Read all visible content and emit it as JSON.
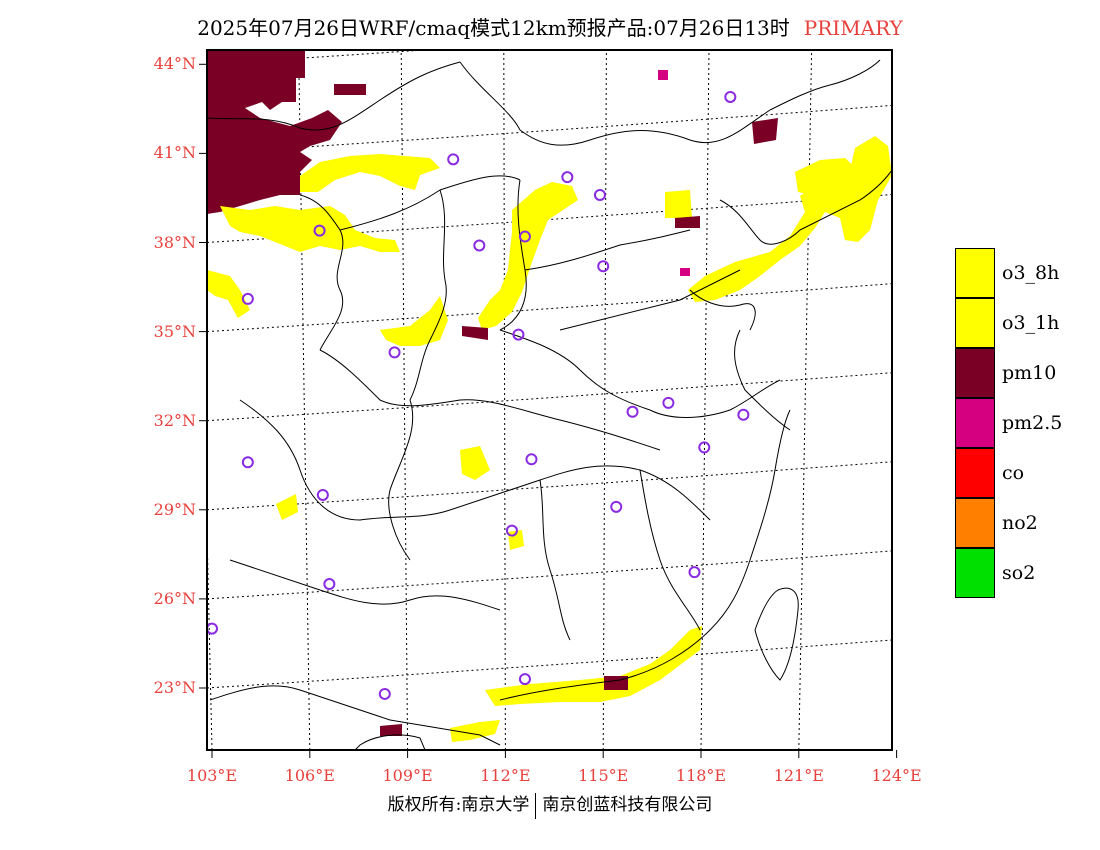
{
  "title": {
    "main": "2025年07月26日WRF/cmaq模式12km预报产品:07月26日13时",
    "tag": "PRIMARY"
  },
  "colors": {
    "label_red": "#e8403c",
    "o3_8h": "#ffff00",
    "o3_1h": "#ffff00",
    "pm10": "#7a0026",
    "pm2_5": "#d4007f",
    "co": "#ff0000",
    "no2": "#ff8000",
    "so2": "#00e000",
    "station_circle": "#8a2be2"
  },
  "chart_data": {
    "type": "map",
    "x_axis": {
      "unit": "°E",
      "range": [
        103,
        124
      ],
      "ticks": [
        "103°E",
        "106°E",
        "109°E",
        "112°E",
        "115°E",
        "118°E",
        "121°E",
        "124°E"
      ]
    },
    "y_axis": {
      "unit": "°N",
      "range": [
        21,
        44.5
      ],
      "ticks": [
        "23°N",
        "26°N",
        "29°N",
        "32°N",
        "35°N",
        "38°N",
        "41°N",
        "44°N"
      ]
    },
    "legend": [
      {
        "key": "o3_8h",
        "label": "o3_8h"
      },
      {
        "key": "o3_1h",
        "label": "o3_1h"
      },
      {
        "key": "pm10",
        "label": "pm10"
      },
      {
        "key": "pm2_5",
        "label": "pm2.5"
      },
      {
        "key": "co",
        "label": "co"
      },
      {
        "key": "no2",
        "label": "no2"
      },
      {
        "key": "so2",
        "label": "so2"
      }
    ],
    "regions": [
      {
        "pollutant": "pm10",
        "area": "northwest corner (103–106°E, 39–44°N)"
      },
      {
        "pollutant": "o3_8h",
        "area": "band 104–110°E near 38–40°N"
      },
      {
        "pollutant": "o3_8h",
        "area": "Taihang band 111–113°E, 35–40°N"
      },
      {
        "pollutant": "o3_8h",
        "area": "Bohai / Liaoning coast 118–124°E, 36–41°N"
      },
      {
        "pollutant": "o3_8h",
        "area": "south China coast 112–118°E near 23°N"
      }
    ],
    "stations": [
      {
        "lon": 118.9,
        "lat": 42.9
      },
      {
        "lon": 110.4,
        "lat": 40.8
      },
      {
        "lon": 113.9,
        "lat": 40.2
      },
      {
        "lon": 114.9,
        "lat": 39.6
      },
      {
        "lon": 106.3,
        "lat": 38.4
      },
      {
        "lon": 111.2,
        "lat": 37.9
      },
      {
        "lon": 112.6,
        "lat": 38.2
      },
      {
        "lon": 115.0,
        "lat": 37.2
      },
      {
        "lon": 104.1,
        "lat": 36.1
      },
      {
        "lon": 112.4,
        "lat": 34.9
      },
      {
        "lon": 108.6,
        "lat": 34.3
      },
      {
        "lon": 117.0,
        "lat": 32.6
      },
      {
        "lon": 115.9,
        "lat": 32.3
      },
      {
        "lon": 119.3,
        "lat": 32.2
      },
      {
        "lon": 118.1,
        "lat": 31.1
      },
      {
        "lon": 104.1,
        "lat": 30.6
      },
      {
        "lon": 112.8,
        "lat": 30.7
      },
      {
        "lon": 106.4,
        "lat": 29.5
      },
      {
        "lon": 115.4,
        "lat": 29.1
      },
      {
        "lon": 112.2,
        "lat": 28.3
      },
      {
        "lon": 117.8,
        "lat": 26.9
      },
      {
        "lon": 106.6,
        "lat": 26.5
      },
      {
        "lon": 103.0,
        "lat": 25.0
      },
      {
        "lon": 112.6,
        "lat": 23.3
      },
      {
        "lon": 108.3,
        "lat": 22.8
      }
    ]
  },
  "footer": {
    "left": "版权所有:南京大学",
    "right": "南京创蓝科技有限公司"
  }
}
